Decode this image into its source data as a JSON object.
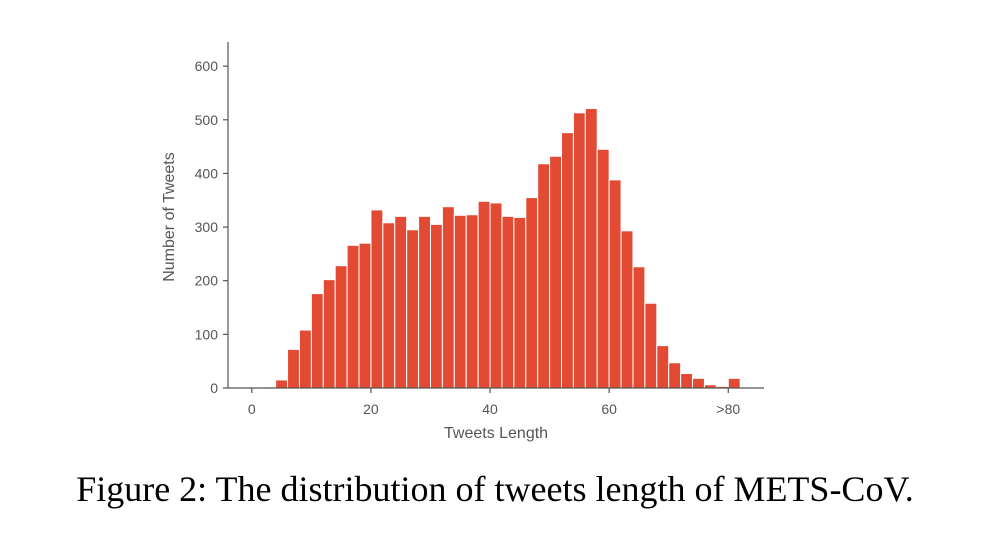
{
  "caption": "Figure 2: The distribution of tweets length of METS-CoV.",
  "chart_data": {
    "type": "bar",
    "title": "",
    "xlabel": "Tweets Length",
    "ylabel": "Number of Tweets",
    "xlim": [
      -4,
      86
    ],
    "ylim": [
      0,
      645
    ],
    "xticks": [
      0,
      20,
      40,
      60,
      80
    ],
    "xtick_labels": [
      "0",
      "20",
      "40",
      "60",
      ">80"
    ],
    "yticks": [
      0,
      100,
      200,
      300,
      400,
      500,
      600
    ],
    "bin_width": 2,
    "bins_start": [
      0,
      2,
      4,
      6,
      8,
      10,
      12,
      14,
      16,
      18,
      20,
      22,
      24,
      26,
      28,
      30,
      32,
      34,
      36,
      38,
      40,
      42,
      44,
      46,
      48,
      50,
      52,
      54,
      56,
      58,
      60,
      62,
      64,
      66,
      68,
      70,
      72,
      74,
      76,
      78,
      80
    ],
    "values": [
      0,
      2,
      15,
      72,
      108,
      176,
      202,
      228,
      266,
      270,
      332,
      308,
      320,
      295,
      320,
      305,
      338,
      322,
      323,
      348,
      345,
      320,
      318,
      355,
      418,
      432,
      476,
      513,
      521,
      445,
      388,
      293,
      226,
      158,
      79,
      47,
      27,
      18,
      6,
      3,
      18
    ],
    "bar_color": "#e34a33",
    "grid": false,
    "legend": "none"
  }
}
